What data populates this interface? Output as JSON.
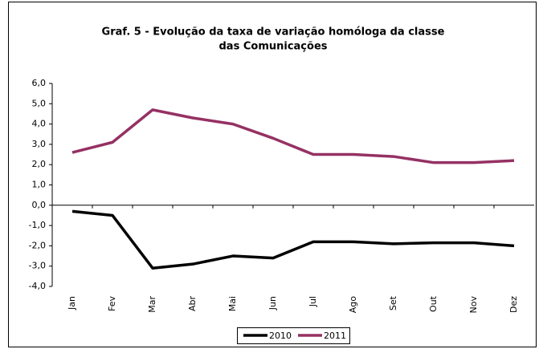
{
  "chart_data": {
    "type": "line",
    "title": [
      "Graf. 5 - Evolução da taxa de variação homóloga da classe",
      "das Comunicações"
    ],
    "categories": [
      "Jan",
      "Fev",
      "Mar",
      "Abr",
      "Mai",
      "Jun",
      "Jul",
      "Ago",
      "Set",
      "Out",
      "Nov",
      "Dez"
    ],
    "series": [
      {
        "name": "2010",
        "color": "#000000",
        "values": [
          -0.3,
          -0.5,
          -3.1,
          -2.9,
          -2.5,
          -2.6,
          -1.8,
          -1.8,
          -1.9,
          -1.85,
          -1.85,
          -2.0
        ]
      },
      {
        "name": "2011",
        "color": "#953163",
        "values": [
          2.6,
          3.1,
          4.7,
          4.3,
          4.0,
          3.3,
          2.5,
          2.5,
          2.4,
          2.1,
          2.1,
          2.2
        ]
      }
    ],
    "ylim": [
      -4,
      6
    ],
    "yticks": [
      {
        "value": -4,
        "label": "-4,0"
      },
      {
        "value": -3,
        "label": "-3,0"
      },
      {
        "value": -2,
        "label": "-2,0"
      },
      {
        "value": -1,
        "label": "-1,0"
      },
      {
        "value": 0,
        "label": "0,0"
      },
      {
        "value": 1,
        "label": "1,0"
      },
      {
        "value": 2,
        "label": "2,0"
      },
      {
        "value": 3,
        "label": "3,0"
      },
      {
        "value": 4,
        "label": "4,0"
      },
      {
        "value": 5,
        "label": "5,0"
      },
      {
        "value": 6,
        "label": "6,0"
      }
    ],
    "legend": "bottom"
  }
}
